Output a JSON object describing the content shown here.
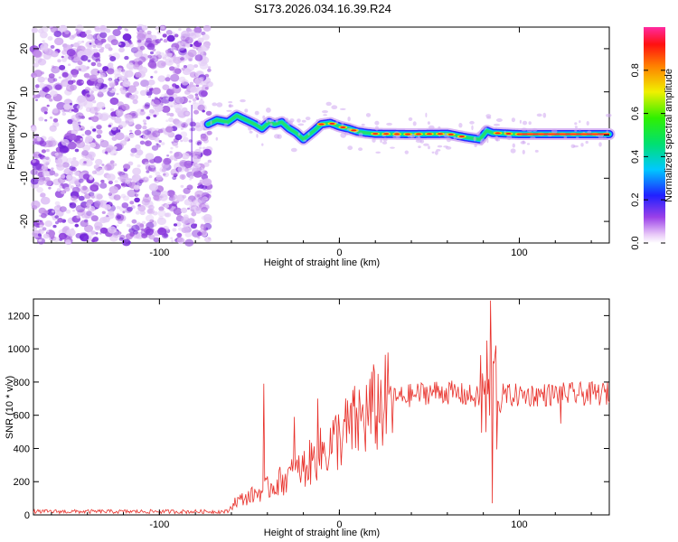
{
  "title": "S173.2026.034.16.39.R24",
  "chart_data": [
    {
      "type": "heatmap",
      "name": "spectrogram",
      "xlabel": "Height of straight line (km)",
      "ylabel": "Frequency (Hz)",
      "xlim": [
        -170,
        150
      ],
      "ylim": [
        -25,
        25
      ],
      "xticks": [
        -100,
        0,
        100
      ],
      "yticks": [
        -20,
        -10,
        0,
        10,
        20
      ],
      "xtick_labels": [
        "-100",
        "0",
        "100"
      ],
      "ytick_labels": [
        "-20",
        "-10",
        "0",
        "10",
        "20"
      ],
      "noise_region_x": [
        -170,
        -72
      ],
      "ridge": [
        {
          "x": -73,
          "f": 2.5
        },
        {
          "x": -68,
          "f": 3.5
        },
        {
          "x": -62,
          "f": 3.0
        },
        {
          "x": -57,
          "f": 4.5
        },
        {
          "x": -52,
          "f": 3.5
        },
        {
          "x": -47,
          "f": 2.5
        },
        {
          "x": -43,
          "f": 1.5
        },
        {
          "x": -39,
          "f": 3.0
        },
        {
          "x": -36,
          "f": 2.5
        },
        {
          "x": -32,
          "f": 3.0
        },
        {
          "x": -28,
          "f": 1.5
        },
        {
          "x": -24,
          "f": 0.5
        },
        {
          "x": -20,
          "f": -1.0
        },
        {
          "x": -17,
          "f": 0.0
        },
        {
          "x": -14,
          "f": 1.0
        },
        {
          "x": -10,
          "f": 2.5
        },
        {
          "x": -5,
          "f": 2.8
        },
        {
          "x": 0,
          "f": 2.0
        },
        {
          "x": 5,
          "f": 1.5
        },
        {
          "x": 10,
          "f": 0.8
        },
        {
          "x": 15,
          "f": 0.5
        },
        {
          "x": 20,
          "f": 0.3
        },
        {
          "x": 40,
          "f": 0.2
        },
        {
          "x": 60,
          "f": 0.3
        },
        {
          "x": 70,
          "f": -0.5
        },
        {
          "x": 78,
          "f": -1.0
        },
        {
          "x": 82,
          "f": 1.0
        },
        {
          "x": 85,
          "f": 0.5
        },
        {
          "x": 100,
          "f": 0.2
        },
        {
          "x": 150,
          "f": 0.2
        }
      ]
    },
    {
      "type": "line",
      "name": "snr",
      "xlabel": "Height of straight line (km)",
      "ylabel": "SNR (10 * v/v)",
      "xlim": [
        -170,
        150
      ],
      "ylim": [
        0,
        1300
      ],
      "xticks": [
        -100,
        0,
        100
      ],
      "yticks": [
        0,
        200,
        400,
        600,
        800,
        1000,
        1200
      ],
      "xtick_labels": [
        "-100",
        "0",
        "100"
      ],
      "ytick_labels": [
        "0",
        "200",
        "400",
        "600",
        "800",
        "1000",
        "1200"
      ],
      "color": "#e8302a",
      "trend": [
        {
          "x": -170,
          "y": 20
        },
        {
          "x": -62,
          "y": 20
        },
        {
          "x": -58,
          "y": 80
        },
        {
          "x": -50,
          "y": 110
        },
        {
          "x": -40,
          "y": 160
        },
        {
          "x": -30,
          "y": 220
        },
        {
          "x": -20,
          "y": 280
        },
        {
          "x": -10,
          "y": 370
        },
        {
          "x": 0,
          "y": 470
        },
        {
          "x": 10,
          "y": 560
        },
        {
          "x": 20,
          "y": 640
        },
        {
          "x": 30,
          "y": 700
        },
        {
          "x": 40,
          "y": 720
        },
        {
          "x": 50,
          "y": 740
        },
        {
          "x": 60,
          "y": 740
        },
        {
          "x": 70,
          "y": 720
        },
        {
          "x": 80,
          "y": 700
        },
        {
          "x": 90,
          "y": 720
        },
        {
          "x": 100,
          "y": 720
        },
        {
          "x": 120,
          "y": 725
        },
        {
          "x": 150,
          "y": 730
        }
      ],
      "spikes": [
        {
          "x": -42,
          "y": 790
        },
        {
          "x": -25,
          "y": 590
        },
        {
          "x": -12,
          "y": 700
        },
        {
          "x": 84,
          "y": 1290
        },
        {
          "x": 85,
          "y": 70
        },
        {
          "x": 82,
          "y": 1050
        },
        {
          "x": 87,
          "y": 1020
        },
        {
          "x": 123,
          "y": 550
        }
      ]
    }
  ],
  "colorbar": {
    "label": "Normalized spectral amplitude",
    "range": [
      0.0,
      1.0
    ],
    "ticks": [
      0.0,
      0.2,
      0.4,
      0.6,
      0.8
    ],
    "tick_labels": [
      "0.0",
      "0.2",
      "0.4",
      "0.6",
      "0.8"
    ]
  }
}
